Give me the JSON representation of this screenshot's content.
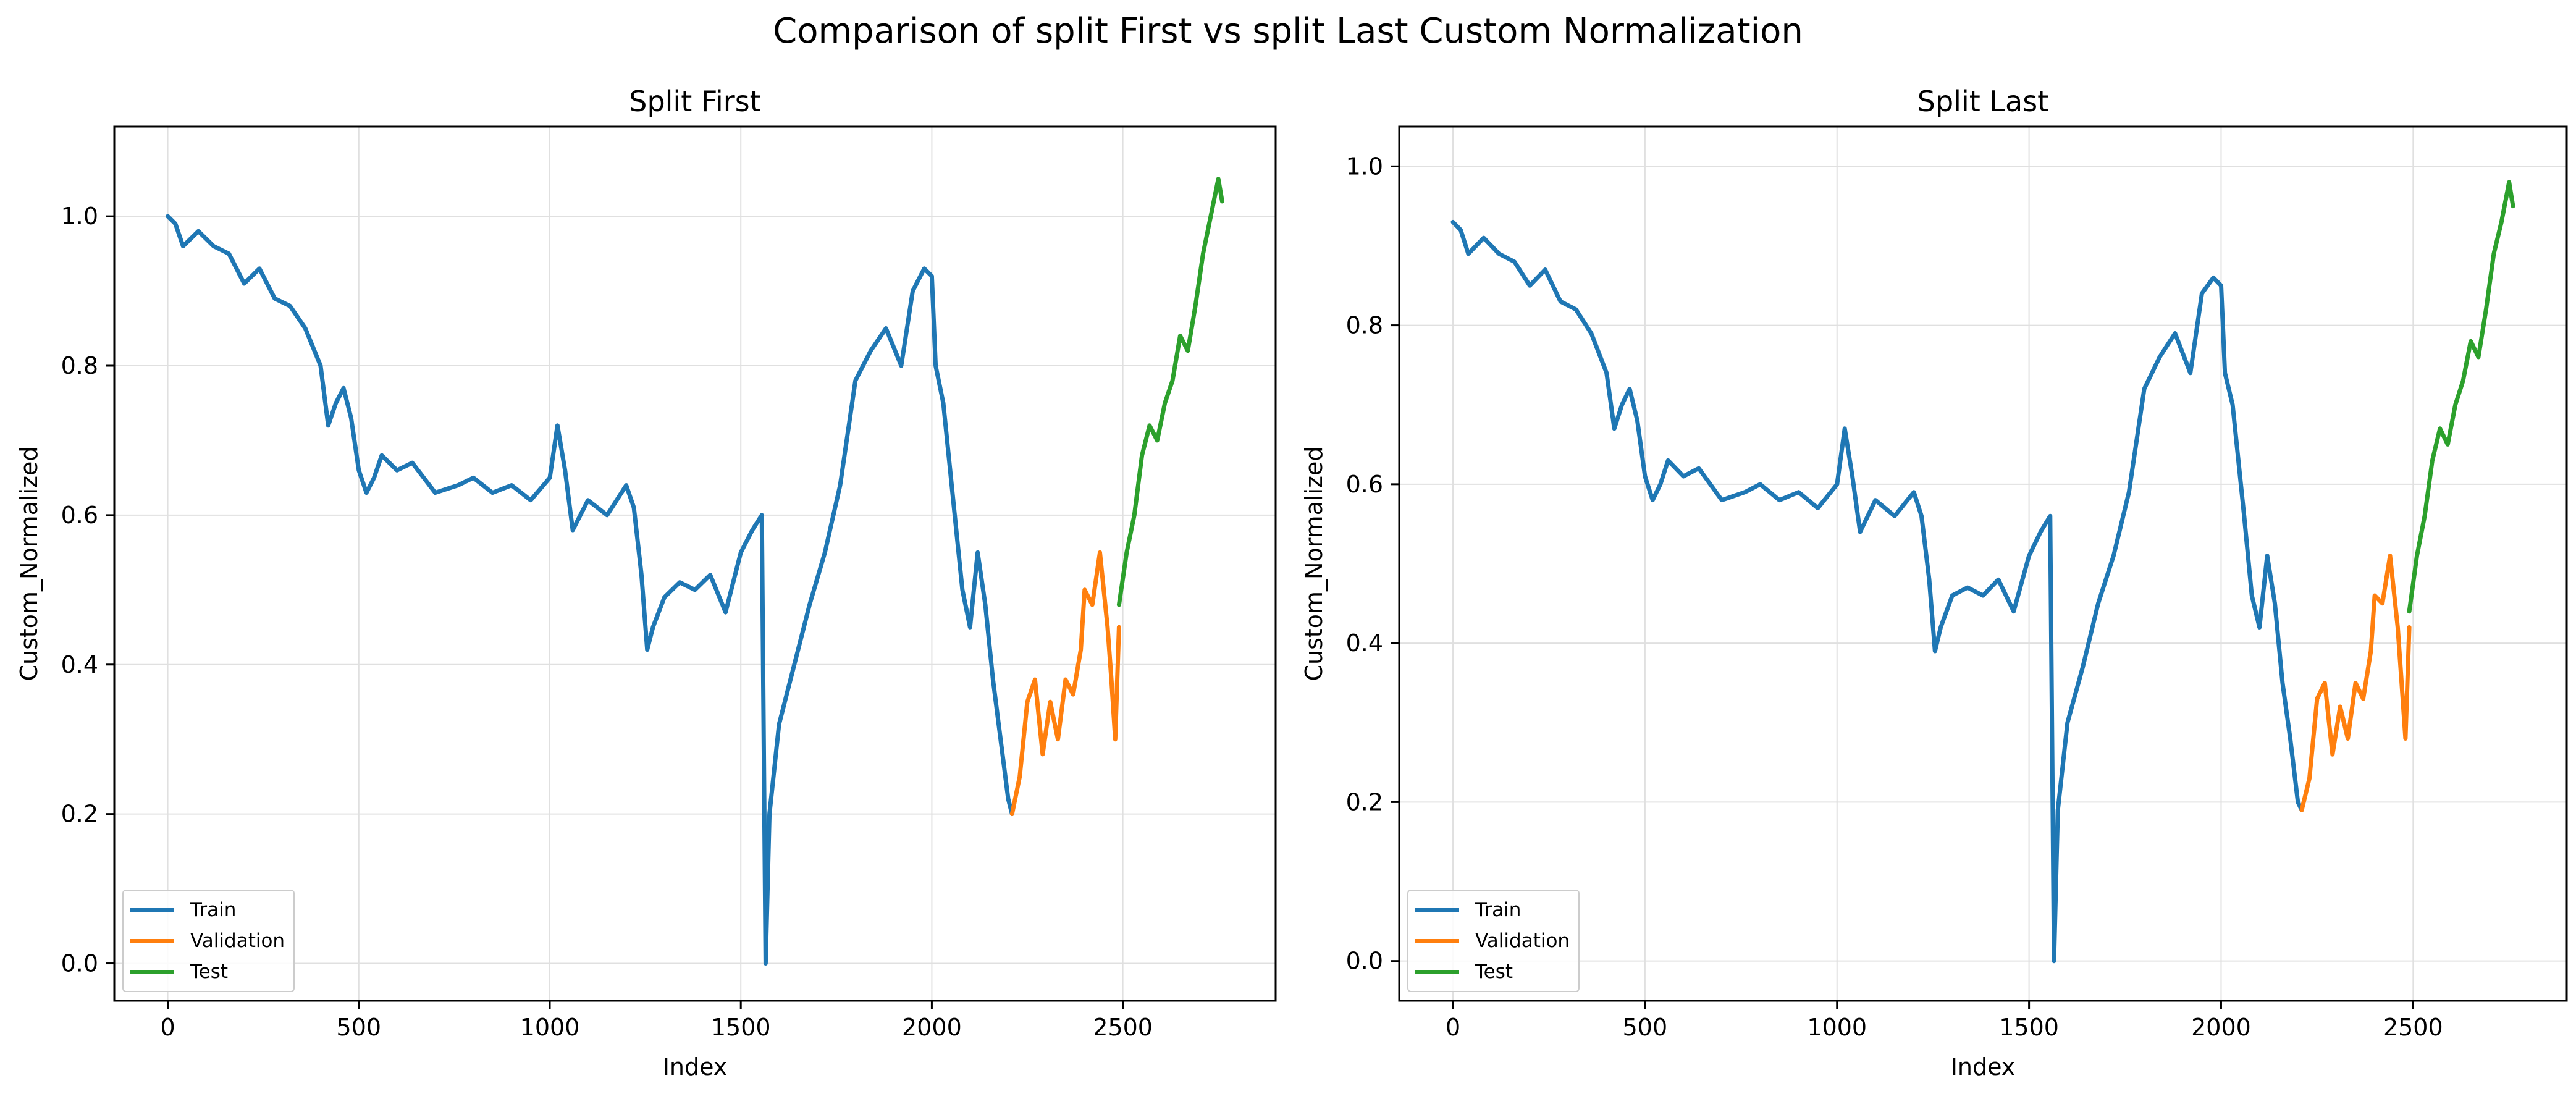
{
  "figure": {
    "suptitle": "Comparison of split First vs split Last Custom Normalization"
  },
  "colors": {
    "train": "#1f77b4",
    "validation": "#ff7f0e",
    "test": "#2ca02c",
    "grid": "#e0e0e0"
  },
  "chart_data": [
    {
      "type": "line",
      "title": "Split First",
      "xlabel": "Index",
      "ylabel": "Custom_Normalized",
      "xlim": [
        -140,
        2900
      ],
      "ylim": [
        -0.05,
        1.12
      ],
      "xticks": [
        0,
        500,
        1000,
        1500,
        2000,
        2500
      ],
      "yticks": [
        0.0,
        0.2,
        0.4,
        0.6,
        0.8,
        1.0
      ],
      "ytick_labels": [
        "0.0",
        "0.2",
        "0.4",
        "0.6",
        "0.8",
        "1.0"
      ],
      "grid": true,
      "legend_position": "lower-left",
      "series": [
        {
          "name": "Train",
          "x": [
            0,
            20,
            40,
            80,
            120,
            160,
            200,
            240,
            280,
            320,
            360,
            400,
            420,
            440,
            460,
            480,
            500,
            520,
            540,
            560,
            600,
            640,
            700,
            760,
            800,
            850,
            900,
            950,
            1000,
            1020,
            1040,
            1060,
            1100,
            1150,
            1200,
            1220,
            1240,
            1255,
            1270,
            1300,
            1340,
            1380,
            1420,
            1460,
            1500,
            1530,
            1555,
            1565,
            1575,
            1600,
            1640,
            1680,
            1720,
            1760,
            1800,
            1840,
            1880,
            1920,
            1950,
            1980,
            2000,
            2010,
            2030,
            2060,
            2080,
            2100,
            2120,
            2140,
            2160,
            2180,
            2200,
            2210
          ],
          "y": [
            1.0,
            0.99,
            0.96,
            0.98,
            0.96,
            0.95,
            0.91,
            0.93,
            0.89,
            0.88,
            0.85,
            0.8,
            0.72,
            0.75,
            0.77,
            0.73,
            0.66,
            0.63,
            0.65,
            0.68,
            0.66,
            0.67,
            0.63,
            0.64,
            0.65,
            0.63,
            0.64,
            0.62,
            0.65,
            0.72,
            0.66,
            0.58,
            0.62,
            0.6,
            0.64,
            0.61,
            0.52,
            0.42,
            0.45,
            0.49,
            0.51,
            0.5,
            0.52,
            0.47,
            0.55,
            0.58,
            0.6,
            0.0,
            0.2,
            0.32,
            0.4,
            0.48,
            0.55,
            0.64,
            0.78,
            0.82,
            0.85,
            0.8,
            0.9,
            0.93,
            0.92,
            0.8,
            0.75,
            0.6,
            0.5,
            0.45,
            0.55,
            0.48,
            0.38,
            0.3,
            0.22,
            0.2
          ]
        },
        {
          "name": "Validation",
          "x": [
            2210,
            2230,
            2250,
            2270,
            2290,
            2310,
            2330,
            2350,
            2370,
            2390,
            2400,
            2420,
            2440,
            2460,
            2470,
            2480,
            2490
          ],
          "y": [
            0.2,
            0.25,
            0.35,
            0.38,
            0.28,
            0.35,
            0.3,
            0.38,
            0.36,
            0.42,
            0.5,
            0.48,
            0.55,
            0.45,
            0.38,
            0.3,
            0.45
          ],
          "name_note": null
        },
        {
          "name": "Test",
          "x": [
            2490,
            2510,
            2530,
            2550,
            2570,
            2590,
            2610,
            2630,
            2650,
            2670,
            2690,
            2710,
            2730,
            2750,
            2760
          ],
          "y": [
            0.48,
            0.55,
            0.6,
            0.68,
            0.72,
            0.7,
            0.75,
            0.78,
            0.84,
            0.82,
            0.88,
            0.95,
            1.0,
            1.05,
            1.02
          ]
        }
      ]
    },
    {
      "type": "line",
      "title": "Split Last",
      "xlabel": "Index",
      "ylabel": "Custom_Normalized",
      "xlim": [
        -140,
        2900
      ],
      "ylim": [
        -0.05,
        1.05
      ],
      "xticks": [
        0,
        500,
        1000,
        1500,
        2000,
        2500
      ],
      "yticks": [
        0.0,
        0.2,
        0.4,
        0.6,
        0.8,
        1.0
      ],
      "ytick_labels": [
        "0.0",
        "0.2",
        "0.4",
        "0.6",
        "0.8",
        "1.0"
      ],
      "grid": true,
      "legend_position": "lower-left",
      "series": [
        {
          "name": "Train",
          "x": [
            0,
            20,
            40,
            80,
            120,
            160,
            200,
            240,
            280,
            320,
            360,
            400,
            420,
            440,
            460,
            480,
            500,
            520,
            540,
            560,
            600,
            640,
            700,
            760,
            800,
            850,
            900,
            950,
            1000,
            1020,
            1040,
            1060,
            1100,
            1150,
            1200,
            1220,
            1240,
            1255,
            1270,
            1300,
            1340,
            1380,
            1420,
            1460,
            1500,
            1530,
            1555,
            1565,
            1575,
            1600,
            1640,
            1680,
            1720,
            1760,
            1800,
            1840,
            1880,
            1920,
            1950,
            1980,
            2000,
            2010,
            2030,
            2060,
            2080,
            2100,
            2120,
            2140,
            2160,
            2180,
            2200,
            2210
          ],
          "y": [
            0.93,
            0.92,
            0.89,
            0.91,
            0.89,
            0.88,
            0.85,
            0.87,
            0.83,
            0.82,
            0.79,
            0.74,
            0.67,
            0.7,
            0.72,
            0.68,
            0.61,
            0.58,
            0.6,
            0.63,
            0.61,
            0.62,
            0.58,
            0.59,
            0.6,
            0.58,
            0.59,
            0.57,
            0.6,
            0.67,
            0.61,
            0.54,
            0.58,
            0.56,
            0.59,
            0.56,
            0.48,
            0.39,
            0.42,
            0.46,
            0.47,
            0.46,
            0.48,
            0.44,
            0.51,
            0.54,
            0.56,
            0.0,
            0.19,
            0.3,
            0.37,
            0.45,
            0.51,
            0.59,
            0.72,
            0.76,
            0.79,
            0.74,
            0.84,
            0.86,
            0.85,
            0.74,
            0.7,
            0.56,
            0.46,
            0.42,
            0.51,
            0.45,
            0.35,
            0.28,
            0.2,
            0.19
          ]
        },
        {
          "name": "Validation",
          "x": [
            2210,
            2230,
            2250,
            2270,
            2290,
            2310,
            2330,
            2350,
            2370,
            2390,
            2400,
            2420,
            2440,
            2460,
            2470,
            2480,
            2490
          ],
          "y": [
            0.19,
            0.23,
            0.33,
            0.35,
            0.26,
            0.32,
            0.28,
            0.35,
            0.33,
            0.39,
            0.46,
            0.45,
            0.51,
            0.42,
            0.35,
            0.28,
            0.42
          ]
        },
        {
          "name": "Test",
          "x": [
            2490,
            2510,
            2530,
            2550,
            2570,
            2590,
            2610,
            2630,
            2650,
            2670,
            2690,
            2710,
            2730,
            2750,
            2760
          ],
          "y": [
            0.44,
            0.51,
            0.56,
            0.63,
            0.67,
            0.65,
            0.7,
            0.73,
            0.78,
            0.76,
            0.82,
            0.89,
            0.93,
            0.98,
            0.95
          ]
        }
      ]
    }
  ]
}
